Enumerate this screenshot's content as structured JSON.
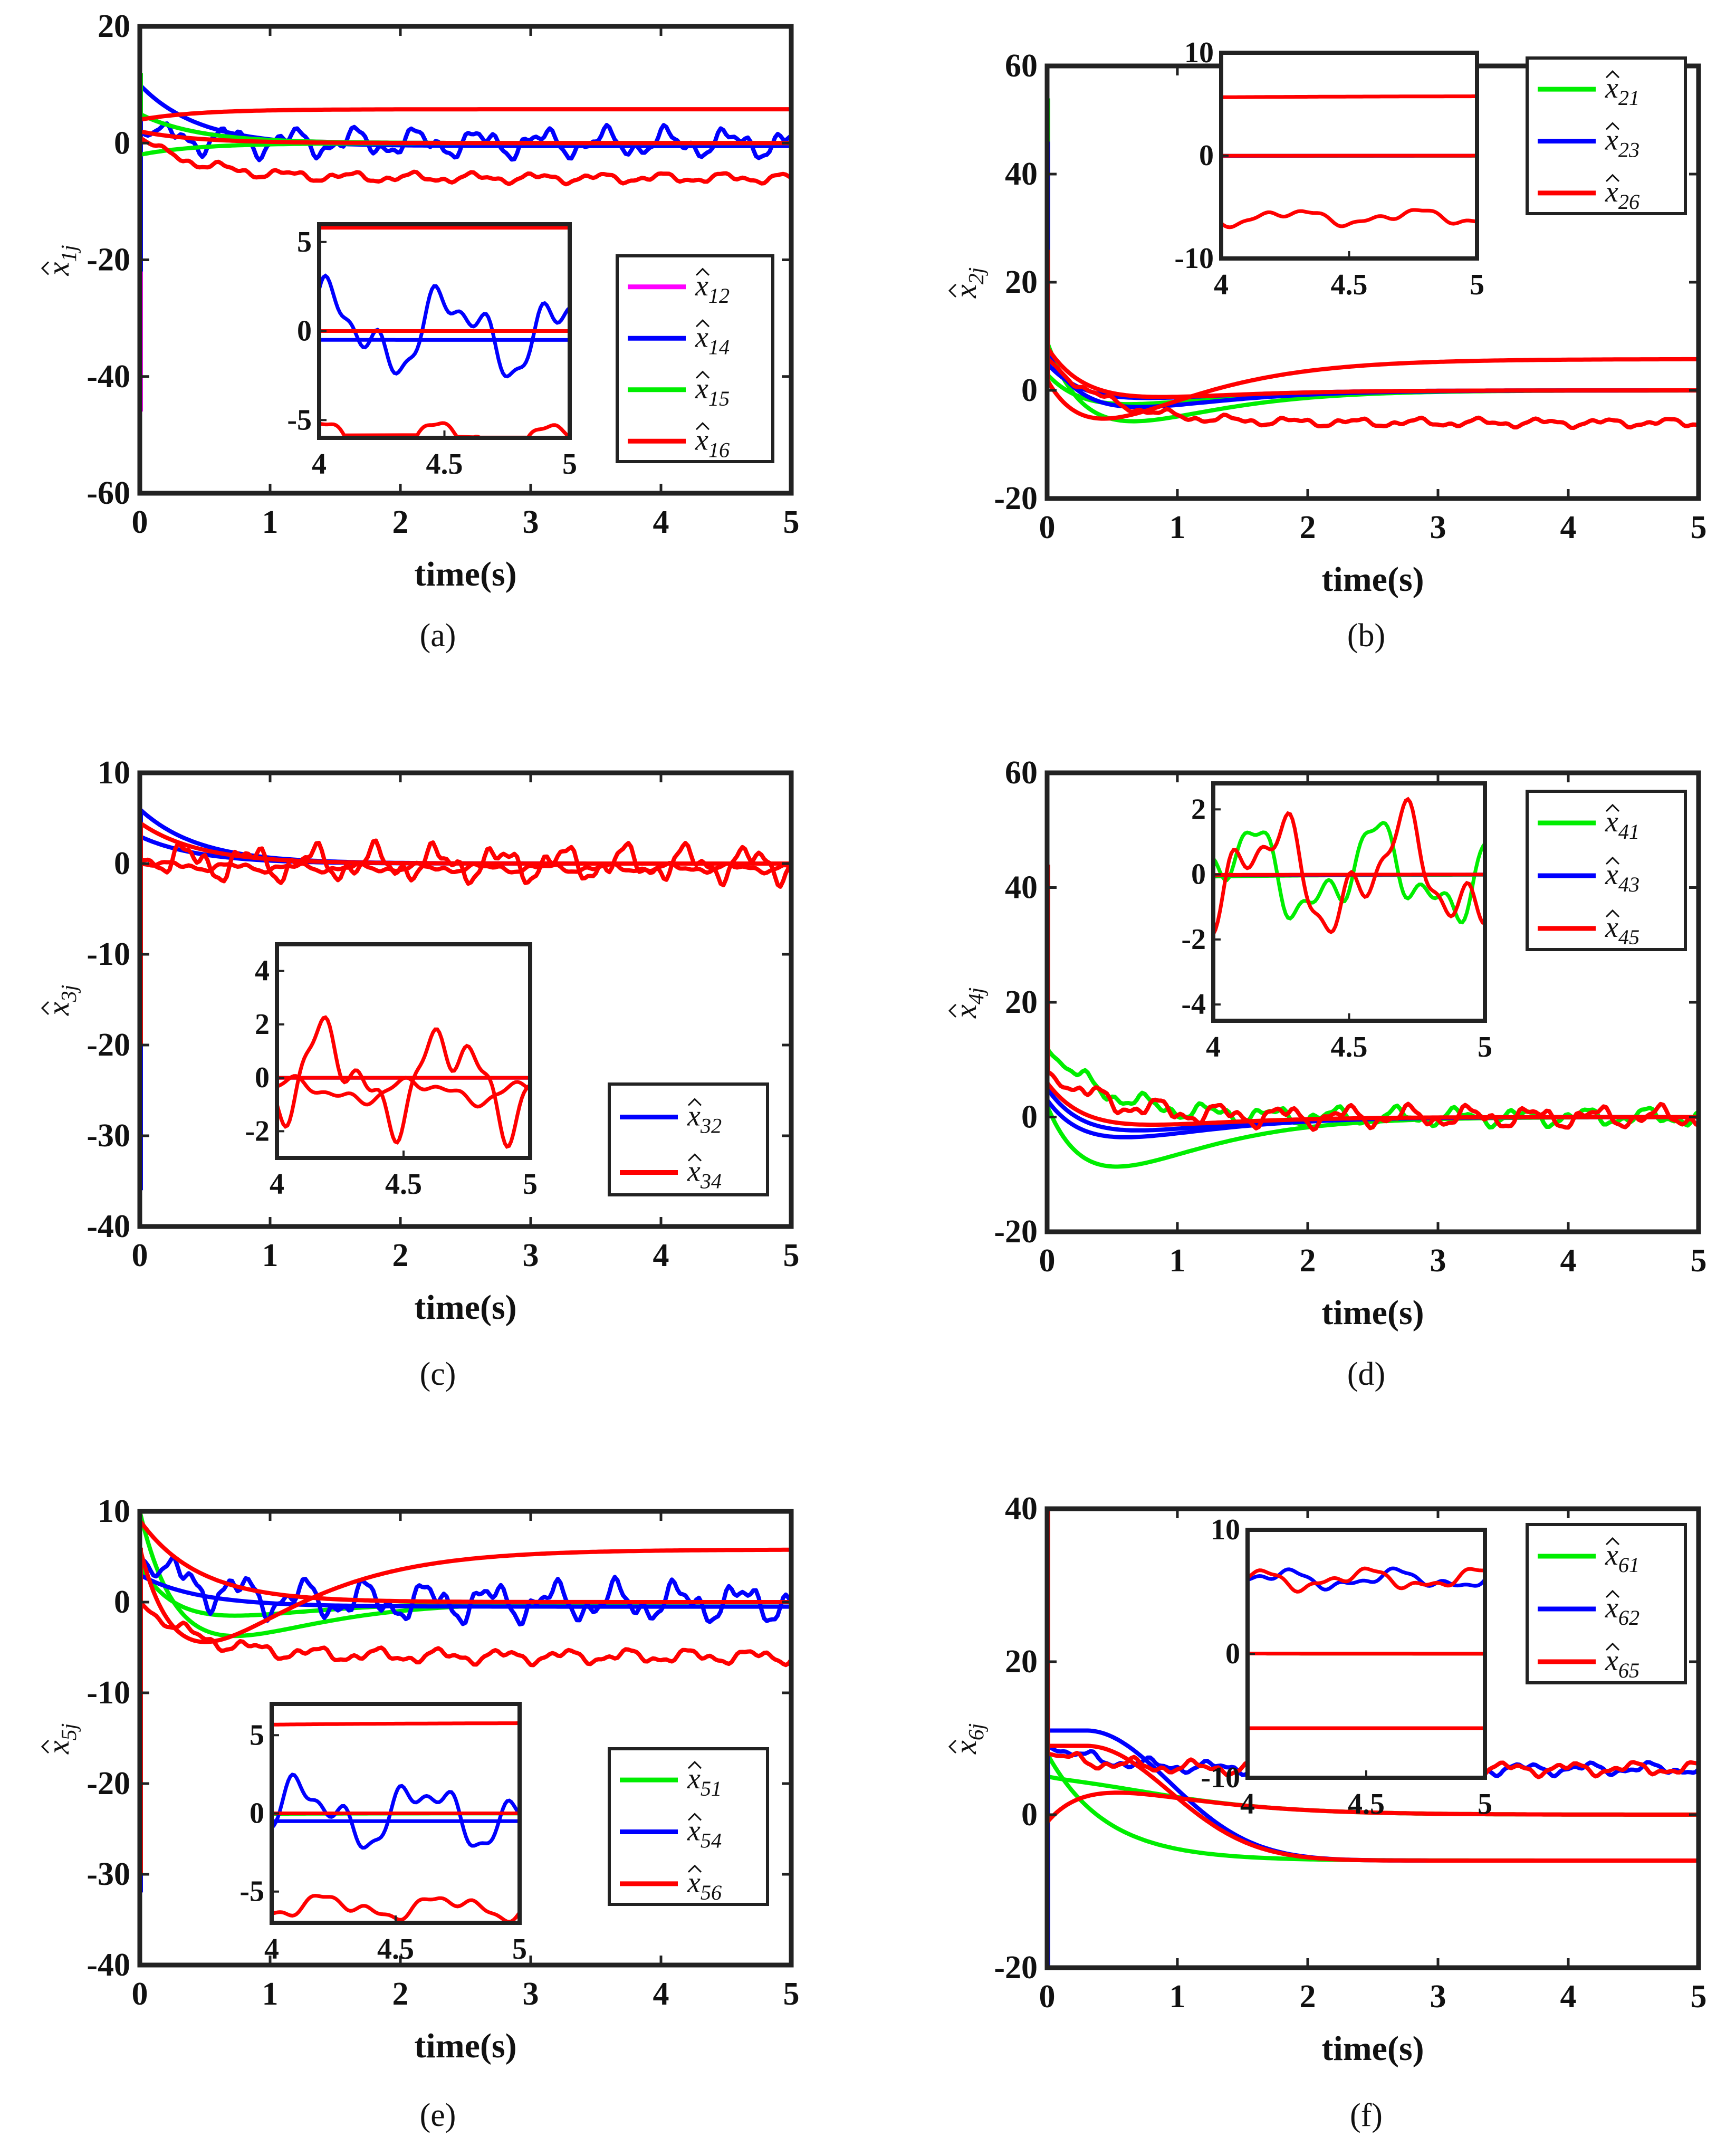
{
  "figure": {
    "xlabel": "time(s)"
  },
  "chart_data": [
    {
      "type": "line",
      "caption": "(a)",
      "xlabel": "time(s)",
      "ylabel": "x̂1j",
      "xlim": [
        0,
        5
      ],
      "ylim": [
        -60,
        20
      ],
      "yticks": [
        "20",
        "0",
        "-20",
        "-40",
        "-60"
      ],
      "xticks": [
        "0",
        "1",
        "2",
        "3",
        "4",
        "5"
      ],
      "legend": [
        "x̂12",
        "x̂14",
        "x̂15",
        "x̂16"
      ],
      "legend_colors": [
        "#ff00ff",
        "#0000ff",
        "#00ee00",
        "#ff0000"
      ],
      "legend_position": "center-right",
      "inset": {
        "xlim": [
          4,
          5
        ],
        "ylim": [
          -6,
          6
        ],
        "yticks": [
          "5",
          "0",
          "-5"
        ],
        "xticks": [
          "4",
          "4.5",
          "5"
        ],
        "position": "center"
      },
      "series": [
        {
          "name": "x̂12",
          "color": "#ff00ff",
          "kind": "decay",
          "y0": 5,
          "steady": 0,
          "osc": 0,
          "amp": 0,
          "spike": -46
        },
        {
          "name": "x̂14",
          "color": "#0000ff",
          "kind": "decay",
          "y0": 10,
          "steady": -0.5,
          "osc": 0,
          "amp": 0,
          "spike": -22
        },
        {
          "name": "x̂14 (2)",
          "color": "#0000ff",
          "kind": "decay",
          "y0": 2,
          "steady": 0,
          "osc": 1,
          "amp": 3.2,
          "spike": 0
        },
        {
          "name": "x̂15",
          "color": "#00ee00",
          "kind": "decay",
          "y0": 5,
          "steady": 0,
          "osc": 0,
          "amp": 0,
          "spike": 12
        },
        {
          "name": "x̂15 (2)",
          "color": "#00ee00",
          "kind": "decay",
          "y0": -2,
          "steady": 0,
          "osc": 0,
          "amp": 0,
          "spike": 0
        },
        {
          "name": "x̂16",
          "color": "#ff0000",
          "kind": "decay",
          "y0": 4,
          "steady": 5.8,
          "osc": 0,
          "amp": 0,
          "spike": 0
        },
        {
          "name": "x̂16 (2)",
          "color": "#ff0000",
          "kind": "decay",
          "y0": 1,
          "steady": -6,
          "osc": 1,
          "amp": 1.1,
          "spike": 0
        },
        {
          "name": "x̂16 (3)",
          "color": "#ff0000",
          "kind": "decay",
          "y0": 2,
          "steady": 0,
          "osc": 0,
          "amp": 0,
          "spike": 0
        }
      ]
    },
    {
      "type": "line",
      "caption": "(b)",
      "xlabel": "time(s)",
      "ylabel": "x̂2j",
      "xlim": [
        0,
        5
      ],
      "ylim": [
        -20,
        60
      ],
      "yticks": [
        "60",
        "40",
        "20",
        "0",
        "-20"
      ],
      "xticks": [
        "0",
        "1",
        "2",
        "3",
        "4",
        "5"
      ],
      "legend": [
        "x̂21",
        "x̂23",
        "x̂26"
      ],
      "legend_colors": [
        "#00ee00",
        "#0000ff",
        "#ff0000"
      ],
      "legend_position": "top-right",
      "inset": {
        "xlim": [
          4,
          5
        ],
        "ylim": [
          -10,
          10
        ],
        "yticks": [
          "10",
          "0",
          "-10"
        ],
        "xticks": [
          "4",
          "4.5",
          "5"
        ],
        "position": "top"
      },
      "series": [
        {
          "name": "x̂21",
          "color": "#00ee00",
          "kind": "dip",
          "y0": 9,
          "steady": 0,
          "depth": -7,
          "osc": 0,
          "amp": 0,
          "spike": 54
        },
        {
          "name": "x̂21 (2)",
          "color": "#00ee00",
          "kind": "dip",
          "y0": 3,
          "steady": 0,
          "depth": -3,
          "osc": 0,
          "amp": 0,
          "spike": 0
        },
        {
          "name": "x̂23",
          "color": "#0000ff",
          "kind": "dip",
          "y0": 7,
          "steady": 0,
          "depth": -4,
          "osc": 0,
          "amp": 0,
          "spike": 46
        },
        {
          "name": "x̂23 (2)",
          "color": "#0000ff",
          "kind": "dip",
          "y0": 5,
          "steady": 0,
          "depth": -2,
          "osc": 0,
          "amp": 0,
          "spike": 0
        },
        {
          "name": "x̂26",
          "color": "#ff0000",
          "kind": "dip",
          "y0": 2,
          "steady": 5.8,
          "depth": -8,
          "osc": 0,
          "amp": 0,
          "spike": 26
        },
        {
          "name": "x̂26 (2)",
          "color": "#ff0000",
          "kind": "decay",
          "y0": 6,
          "steady": -6,
          "osc": 1,
          "amp": 1.0,
          "spike": 0
        },
        {
          "name": "x̂26 (3)",
          "color": "#ff0000",
          "kind": "dip",
          "y0": 8,
          "steady": 0,
          "depth": -2,
          "osc": 0,
          "amp": 0,
          "spike": 0
        }
      ]
    },
    {
      "type": "line",
      "caption": "(c)",
      "xlabel": "time(s)",
      "ylabel": "x̂3j",
      "xlim": [
        0,
        5
      ],
      "ylim": [
        -40,
        10
      ],
      "yticks": [
        "10",
        "0",
        "-10",
        "-20",
        "-30",
        "-40"
      ],
      "xticks": [
        "0",
        "1",
        "2",
        "3",
        "4",
        "5"
      ],
      "legend": [
        "x̂32",
        "x̂34"
      ],
      "legend_colors": [
        "#0000ff",
        "#ff0000"
      ],
      "legend_position": "bottom-right",
      "inset": {
        "xlim": [
          4,
          5
        ],
        "ylim": [
          -3,
          5
        ],
        "yticks": [
          "4",
          "2",
          "0",
          "-2"
        ],
        "xticks": [
          "4",
          "4.5",
          "5"
        ],
        "position": "bottom-center"
      },
      "series": [
        {
          "name": "x̂32",
          "color": "#0000ff",
          "kind": "decay",
          "y0": 6,
          "steady": 0,
          "osc": 0,
          "amp": 0,
          "spike": -36
        },
        {
          "name": "x̂32 (2)",
          "color": "#0000ff",
          "kind": "decay",
          "y0": 3,
          "steady": 0,
          "osc": 0,
          "amp": 0,
          "spike": 0
        },
        {
          "name": "x̂34",
          "color": "#ff0000",
          "kind": "decay",
          "y0": 4.5,
          "steady": 0,
          "osc": 0,
          "amp": 0,
          "spike": -20
        },
        {
          "name": "x̂34 (2)",
          "color": "#ff0000",
          "kind": "decay",
          "y0": 0.5,
          "steady": 0,
          "osc": 1,
          "amp": 2.6,
          "spike": 0
        },
        {
          "name": "x̂34 (3)",
          "color": "#ff0000",
          "kind": "decay",
          "y0": 0,
          "steady": -0.5,
          "osc": 1,
          "amp": 0.6,
          "spike": 0
        }
      ]
    },
    {
      "type": "line",
      "caption": "(d)",
      "xlabel": "time(s)",
      "ylabel": "x̂4j",
      "xlim": [
        0,
        5
      ],
      "ylim": [
        -20,
        60
      ],
      "yticks": [
        "60",
        "40",
        "20",
        "0",
        "-20"
      ],
      "xticks": [
        "0",
        "1",
        "2",
        "3",
        "4",
        "5"
      ],
      "legend": [
        "x̂41",
        "x̂43",
        "x̂45"
      ],
      "legend_colors": [
        "#00ee00",
        "#0000ff",
        "#ff0000"
      ],
      "legend_position": "top-right",
      "inset": {
        "xlim": [
          4,
          5
        ],
        "ylim": [
          -4.5,
          2.8
        ],
        "yticks": [
          "2",
          "0",
          "-2",
          "-4"
        ],
        "xticks": [
          "4",
          "4.5",
          "5"
        ],
        "position": "top"
      },
      "series": [
        {
          "name": "x̂41",
          "color": "#00ee00",
          "kind": "dip",
          "y0": 2,
          "steady": 0,
          "depth": -9,
          "osc": 0,
          "amp": 0,
          "spike": 0
        },
        {
          "name": "x̂41 (2)",
          "color": "#00ee00",
          "kind": "decay",
          "y0": 12,
          "steady": 0,
          "osc": 1,
          "amp": 2.0,
          "spike": 0
        },
        {
          "name": "x̂43",
          "color": "#0000ff",
          "kind": "dip",
          "y0": 3,
          "steady": 0,
          "depth": -4,
          "osc": 0,
          "amp": 0,
          "spike": 0
        },
        {
          "name": "x̂43 (2)",
          "color": "#0000ff",
          "kind": "dip",
          "y0": 5,
          "steady": 0,
          "depth": -3,
          "osc": 0,
          "amp": 0,
          "spike": 0
        },
        {
          "name": "x̂45",
          "color": "#ff0000",
          "kind": "decay",
          "y0": 8,
          "steady": 0,
          "osc": 1,
          "amp": 2.4,
          "spike": 44
        },
        {
          "name": "x̂45 (2)",
          "color": "#ff0000",
          "kind": "dip",
          "y0": 6,
          "steady": 0,
          "depth": -2,
          "osc": 0,
          "amp": 0,
          "spike": 0
        }
      ]
    },
    {
      "type": "line",
      "caption": "(e)",
      "xlabel": "time(s)",
      "ylabel": "x̂5j",
      "xlim": [
        0,
        5
      ],
      "ylim": [
        -40,
        10
      ],
      "yticks": [
        "10",
        "0",
        "-10",
        "-20",
        "-30",
        "-40"
      ],
      "xticks": [
        "0",
        "1",
        "2",
        "3",
        "4",
        "5"
      ],
      "legend": [
        "x̂51",
        "x̂54",
        "x̂56"
      ],
      "legend_colors": [
        "#00ee00",
        "#0000ff",
        "#ff0000"
      ],
      "legend_position": "bottom-right",
      "inset": {
        "xlim": [
          4,
          5
        ],
        "ylim": [
          -7,
          7
        ],
        "yticks": [
          "5",
          "0",
          "-5"
        ],
        "xticks": [
          "4",
          "4.5",
          "5"
        ],
        "position": "bottom-center"
      },
      "series": [
        {
          "name": "x̂51",
          "color": "#00ee00",
          "kind": "dip",
          "y0": 10,
          "steady": 0,
          "depth": -5,
          "osc": 0,
          "amp": 0,
          "spike": 0
        },
        {
          "name": "x̂51 (2)",
          "color": "#00ee00",
          "kind": "dip",
          "y0": 4,
          "steady": 0,
          "depth": -2,
          "osc": 0,
          "amp": 0,
          "spike": 0
        },
        {
          "name": "x̂54",
          "color": "#0000ff",
          "kind": "decay",
          "y0": 5,
          "steady": 0,
          "osc": 1,
          "amp": 2.8,
          "spike": -32
        },
        {
          "name": "x̂54 (2)",
          "color": "#0000ff",
          "kind": "decay",
          "y0": 3,
          "steady": -0.5,
          "osc": 0,
          "amp": 0,
          "spike": 0
        },
        {
          "name": "x̂56",
          "color": "#ff0000",
          "kind": "dip",
          "y0": 6,
          "steady": 5.8,
          "depth": -8,
          "osc": 0,
          "amp": 0,
          "spike": -30
        },
        {
          "name": "x̂56 (2)",
          "color": "#ff0000",
          "kind": "decay",
          "y0": 0,
          "steady": -6,
          "osc": 1,
          "amp": 1.0,
          "spike": 0
        },
        {
          "name": "x̂56 (3)",
          "color": "#ff0000",
          "kind": "decay",
          "y0": 9,
          "steady": 0,
          "osc": 0,
          "amp": 0,
          "spike": 0
        }
      ]
    },
    {
      "type": "line",
      "caption": "(f)",
      "xlabel": "time(s)",
      "ylabel": "x̂6j",
      "xlim": [
        0,
        5
      ],
      "ylim": [
        -20,
        40
      ],
      "yticks": [
        "40",
        "20",
        "0",
        "-20"
      ],
      "xticks": [
        "0",
        "1",
        "2",
        "3",
        "4",
        "5"
      ],
      "legend": [
        "x̂61",
        "x̂62",
        "x̂65"
      ],
      "legend_colors": [
        "#00ee00",
        "#0000ff",
        "#ff0000"
      ],
      "legend_position": "top-right",
      "inset": {
        "xlim": [
          4,
          5
        ],
        "ylim": [
          -10,
          10
        ],
        "yticks": [
          "10",
          "0",
          "-10"
        ],
        "xticks": [
          "4",
          "4.5",
          "5"
        ],
        "position": "top"
      },
      "series": [
        {
          "name": "x̂61",
          "color": "#00ee00",
          "kind": "decay",
          "y0": 8,
          "steady": -6,
          "osc": 0,
          "amp": 0,
          "spike": 0
        },
        {
          "name": "x̂61 (2)",
          "color": "#00ee00",
          "kind": "rise",
          "y0": 5,
          "steady": 0,
          "peak": 3,
          "osc": 0,
          "amp": 0,
          "spike": 0
        },
        {
          "name": "x̂62",
          "color": "#0000ff",
          "kind": "hump",
          "y0": 11,
          "steady": -6,
          "osc": 0,
          "amp": 0,
          "spike": -20
        },
        {
          "name": "x̂62 (2)",
          "color": "#0000ff",
          "kind": "decay",
          "y0": 9,
          "steady": 6,
          "osc": 1,
          "amp": 1.0,
          "spike": 0
        },
        {
          "name": "x̂65",
          "color": "#ff0000",
          "kind": "decay",
          "y0": 8,
          "steady": 6,
          "osc": 1,
          "amp": 1.1,
          "spike": 40
        },
        {
          "name": "x̂65 (2)",
          "color": "#ff0000",
          "kind": "rise",
          "y0": -1,
          "steady": 0,
          "peak": 3,
          "osc": 0,
          "amp": 0,
          "spike": 0
        },
        {
          "name": "x̂65 (3)",
          "color": "#ff0000",
          "kind": "hump",
          "y0": 9,
          "steady": -6,
          "osc": 0,
          "amp": 0,
          "spike": 0
        }
      ]
    }
  ]
}
